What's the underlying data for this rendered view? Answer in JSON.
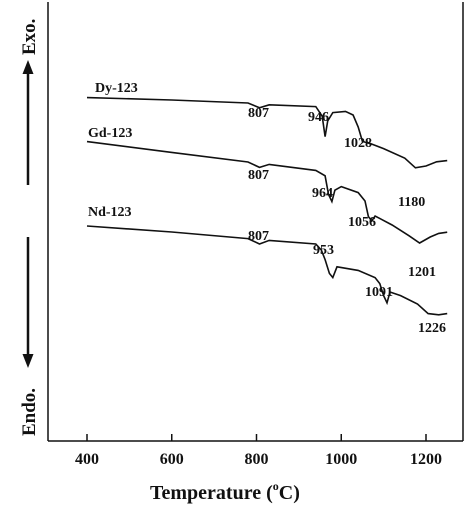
{
  "chart_data": {
    "type": "line",
    "xlabel": "Temperature (°C)",
    "xlabel_main": "Temperature (",
    "xlabel_sup": "o",
    "xlabel_end": "C)",
    "ylabel_top": "Exo.",
    "ylabel_bottom": "Endo.",
    "xlim": [
      300,
      1260
    ],
    "xticks": [
      400,
      600,
      800,
      1000,
      1200
    ],
    "xtick_labels": [
      "400",
      "600",
      "800",
      "1000",
      "1200"
    ],
    "y_values_note": "",
    "series": [
      {
        "name": "Dy-123",
        "points": [
          [
            400,
            0.9
          ],
          [
            600,
            0.5
          ],
          [
            780,
            0.0
          ],
          [
            807,
            -0.8
          ],
          [
            830,
            -0.3
          ],
          [
            940,
            -0.6
          ],
          [
            955,
            -2.2
          ],
          [
            962,
            -5.6
          ],
          [
            968,
            -3.0
          ],
          [
            980,
            -1.6
          ],
          [
            1010,
            -1.4
          ],
          [
            1028,
            -2.0
          ],
          [
            1040,
            -4.0
          ],
          [
            1050,
            -6.4
          ],
          [
            1070,
            -6.8
          ],
          [
            1100,
            -7.6
          ],
          [
            1150,
            -9.2
          ],
          [
            1175,
            -10.8
          ],
          [
            1200,
            -10.5
          ],
          [
            1225,
            -9.8
          ],
          [
            1250,
            -9.6
          ]
        ],
        "peaks": [
          {
            "label": "807",
            "x": 807,
            "y": -0.8
          },
          {
            "label": "946",
            "x": 946,
            "y": -0.6
          },
          {
            "label": "1028",
            "x": 1028,
            "y": -2.0
          },
          {
            "label": "1180",
            "x": 1180,
            "y": -10.8
          }
        ]
      },
      {
        "name": "Gd-123",
        "points": [
          [
            400,
            0.9
          ],
          [
            600,
            -0.9
          ],
          [
            780,
            -2.5
          ],
          [
            807,
            -3.4
          ],
          [
            830,
            -2.9
          ],
          [
            940,
            -3.9
          ],
          [
            962,
            -4.8
          ],
          [
            970,
            -7.9
          ],
          [
            978,
            -9.1
          ],
          [
            985,
            -7.2
          ],
          [
            1000,
            -6.6
          ],
          [
            1040,
            -7.6
          ],
          [
            1056,
            -9.0
          ],
          [
            1064,
            -11.6
          ],
          [
            1072,
            -12.3
          ],
          [
            1080,
            -11.5
          ],
          [
            1120,
            -13.0
          ],
          [
            1160,
            -14.8
          ],
          [
            1185,
            -16.0
          ],
          [
            1210,
            -15.0
          ],
          [
            1230,
            -14.4
          ],
          [
            1250,
            -14.2
          ]
        ],
        "peaks": [
          {
            "label": "807",
            "x": 807,
            "y": -3.4
          },
          {
            "label": "964",
            "x": 964,
            "y": -4.8
          },
          {
            "label": "1056",
            "x": 1056,
            "y": -9.0
          },
          {
            "label": "1201",
            "x": 1201,
            "y": -16.0
          }
        ]
      },
      {
        "name": "Nd-123",
        "points": [
          [
            400,
            0.0
          ],
          [
            600,
            -1.0
          ],
          [
            780,
            -2.1
          ],
          [
            807,
            -3.0
          ],
          [
            830,
            -2.4
          ],
          [
            940,
            -3.0
          ],
          [
            953,
            -4.0
          ],
          [
            962,
            -5.6
          ],
          [
            972,
            -7.9
          ],
          [
            980,
            -8.6
          ],
          [
            990,
            -6.8
          ],
          [
            1040,
            -7.4
          ],
          [
            1080,
            -8.6
          ],
          [
            1091,
            -9.6
          ],
          [
            1100,
            -11.6
          ],
          [
            1108,
            -12.8
          ],
          [
            1115,
            -11.0
          ],
          [
            1140,
            -11.6
          ],
          [
            1180,
            -13.0
          ],
          [
            1205,
            -14.6
          ],
          [
            1230,
            -14.8
          ],
          [
            1250,
            -14.6
          ]
        ],
        "peaks": [
          {
            "label": "807",
            "x": 807,
            "y": -3.0
          },
          {
            "label": "953",
            "x": 953,
            "y": -4.0
          },
          {
            "label": "1091",
            "x": 1091,
            "y": -9.6
          },
          {
            "label": "1226",
            "x": 1226,
            "y": -14.8
          }
        ]
      }
    ]
  }
}
